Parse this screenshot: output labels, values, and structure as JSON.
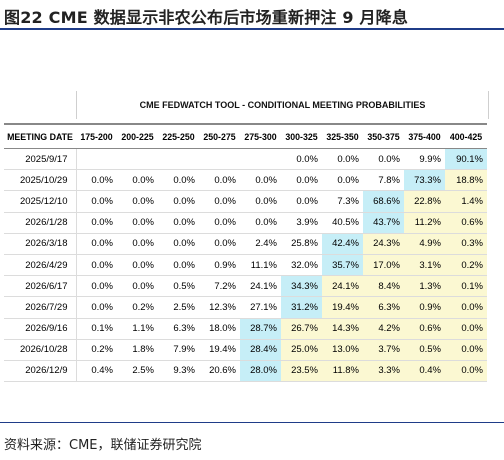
{
  "figure": {
    "title": "图22 CME 数据显示非农公布后市场重新押注 9 月降息",
    "source": "资料来源：CME，联储证券研究院"
  },
  "colors": {
    "highlight_max": "#c6eef7",
    "above_max": "#fbf8d2",
    "below_max": "#ffffff",
    "rule": "#1f3c88"
  },
  "chart_data": {
    "type": "table",
    "title": "CME FEDWATCH TOOL - CONDITIONAL MEETING PROBABILITIES",
    "row_header": "MEETING DATE",
    "columns": [
      "175-200",
      "200-225",
      "225-250",
      "250-275",
      "275-300",
      "300-325",
      "325-350",
      "350-375",
      "375-400",
      "400-425"
    ],
    "rows": [
      {
        "date": "2025/9/17",
        "values": [
          "",
          "",
          "",
          "",
          "",
          "0.0%",
          "0.0%",
          "0.0%",
          "9.9%",
          "90.1%"
        ]
      },
      {
        "date": "2025/10/29",
        "values": [
          "0.0%",
          "0.0%",
          "0.0%",
          "0.0%",
          "0.0%",
          "0.0%",
          "0.0%",
          "7.8%",
          "73.3%",
          "18.8%"
        ]
      },
      {
        "date": "2025/12/10",
        "values": [
          "0.0%",
          "0.0%",
          "0.0%",
          "0.0%",
          "0.0%",
          "0.0%",
          "7.3%",
          "68.6%",
          "22.8%",
          "1.4%"
        ]
      },
      {
        "date": "2026/1/28",
        "values": [
          "0.0%",
          "0.0%",
          "0.0%",
          "0.0%",
          "0.0%",
          "3.9%",
          "40.5%",
          "43.7%",
          "11.2%",
          "0.6%"
        ]
      },
      {
        "date": "2026/3/18",
        "values": [
          "0.0%",
          "0.0%",
          "0.0%",
          "0.0%",
          "2.4%",
          "25.8%",
          "42.4%",
          "24.3%",
          "4.9%",
          "0.3%"
        ]
      },
      {
        "date": "2026/4/29",
        "values": [
          "0.0%",
          "0.0%",
          "0.0%",
          "0.9%",
          "11.1%",
          "32.0%",
          "35.7%",
          "17.0%",
          "3.1%",
          "0.2%"
        ]
      },
      {
        "date": "2026/6/17",
        "values": [
          "0.0%",
          "0.0%",
          "0.5%",
          "7.2%",
          "24.1%",
          "34.3%",
          "24.1%",
          "8.4%",
          "1.3%",
          "0.1%"
        ]
      },
      {
        "date": "2026/7/29",
        "values": [
          "0.0%",
          "0.2%",
          "2.5%",
          "12.3%",
          "27.1%",
          "31.2%",
          "19.4%",
          "6.3%",
          "0.9%",
          "0.0%"
        ]
      },
      {
        "date": "2026/9/16",
        "values": [
          "0.1%",
          "1.1%",
          "6.3%",
          "18.0%",
          "28.7%",
          "26.7%",
          "14.3%",
          "4.2%",
          "0.6%",
          "0.0%"
        ]
      },
      {
        "date": "2026/10/28",
        "values": [
          "0.2%",
          "1.8%",
          "7.9%",
          "19.4%",
          "28.4%",
          "25.0%",
          "13.0%",
          "3.7%",
          "0.5%",
          "0.0%"
        ]
      },
      {
        "date": "2026/12/9",
        "values": [
          "0.4%",
          "2.5%",
          "9.3%",
          "20.6%",
          "28.0%",
          "23.5%",
          "11.8%",
          "3.3%",
          "0.4%",
          "0.0%"
        ]
      }
    ]
  }
}
